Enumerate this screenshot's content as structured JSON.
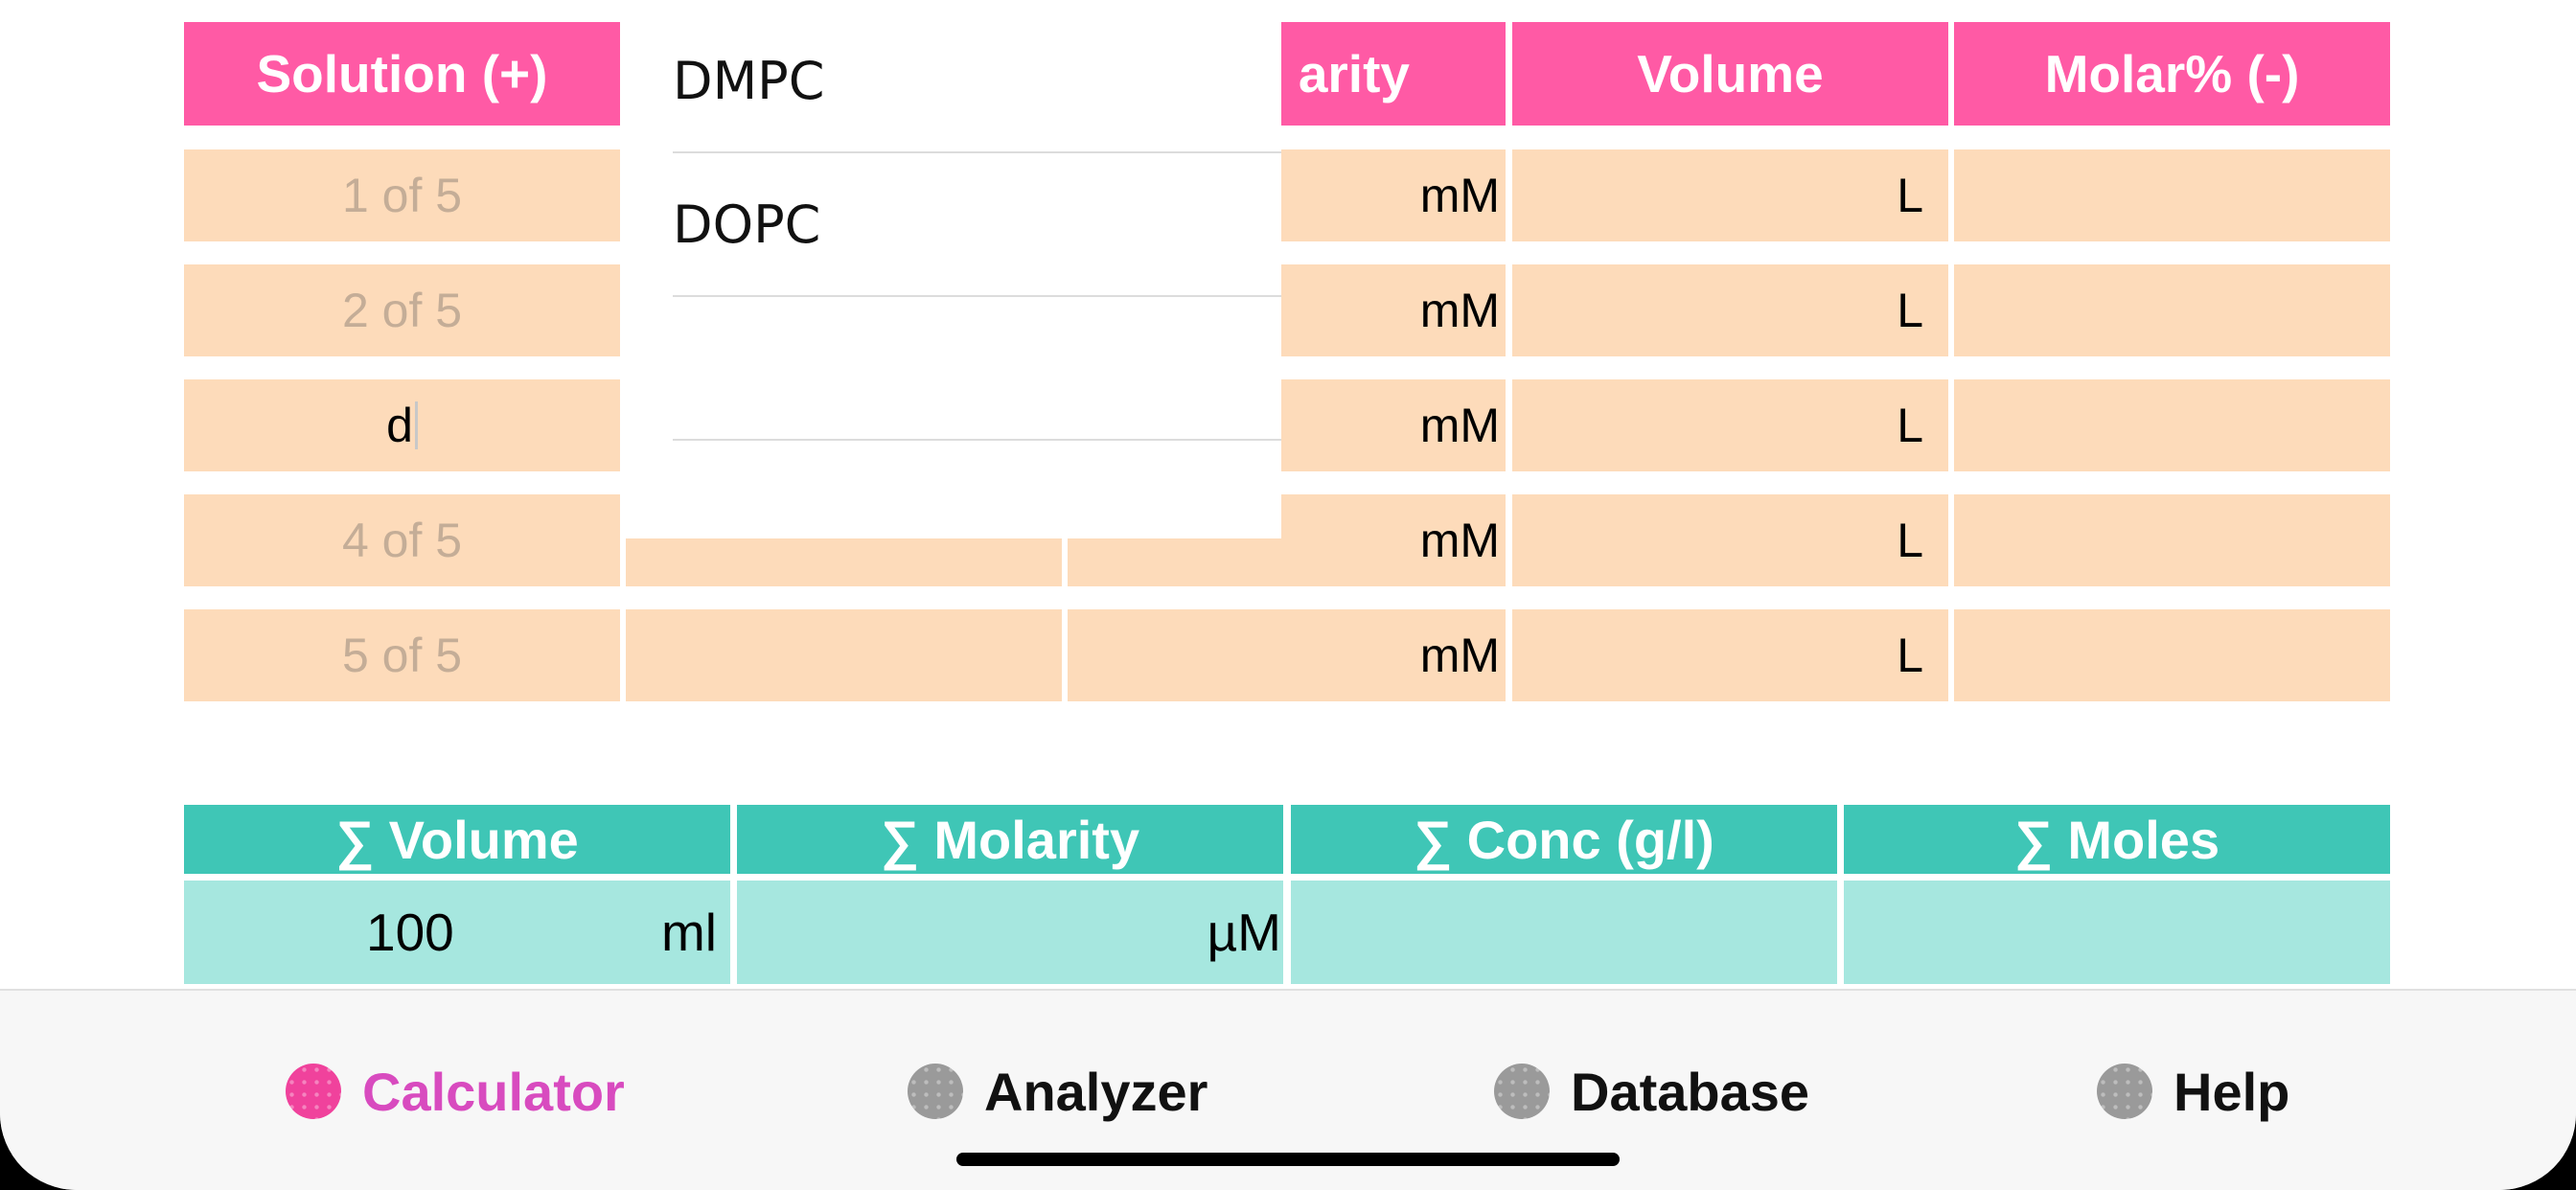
{
  "table": {
    "headers": [
      "Solution (+)",
      "arity",
      "Volume",
      "Molar% (-)"
    ],
    "rows": [
      {
        "solution": "1 of 5",
        "molarity_unit": "mM",
        "volume_unit": "L"
      },
      {
        "solution": "2 of 5",
        "molarity_unit": "mM",
        "volume_unit": "L"
      },
      {
        "solution": "d",
        "molarity_unit": "mM",
        "volume_unit": "L"
      },
      {
        "solution": "4 of 5",
        "molarity_unit": "mM",
        "volume_unit": "L"
      },
      {
        "solution": "5 of 5",
        "molarity_unit": "mM",
        "volume_unit": "L"
      }
    ]
  },
  "dropdown": {
    "items": [
      "DMPC",
      "DOPC",
      "",
      ""
    ]
  },
  "summary": {
    "headers": [
      "∑ Volume",
      "∑ Molarity",
      "∑  Conc (g/l)",
      "∑ Moles"
    ],
    "volume_value": "100",
    "volume_unit": "ml",
    "molarity_unit": "µM"
  },
  "tabs": [
    {
      "label": "Calculator",
      "icon": "calculator-icon",
      "active": true
    },
    {
      "label": "Analyzer",
      "icon": "analyzer-icon",
      "active": false
    },
    {
      "label": "Database",
      "icon": "database-icon",
      "active": false
    },
    {
      "label": "Help",
      "icon": "help-icon",
      "active": false
    }
  ],
  "colors": {
    "header_pink": "#ff5aa5",
    "row_peach": "#fddbba",
    "summary_teal": "#3fc6b6",
    "summary_value_teal": "#a6e7df",
    "active_tab": "#d84bbf"
  }
}
